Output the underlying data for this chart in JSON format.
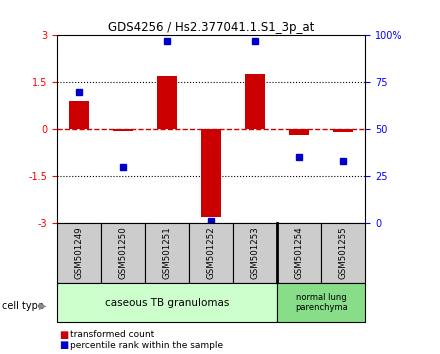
{
  "title": "GDS4256 / Hs2.377041.1.S1_3p_at",
  "samples": [
    "GSM501249",
    "GSM501250",
    "GSM501251",
    "GSM501252",
    "GSM501253",
    "GSM501254",
    "GSM501255"
  ],
  "red_bars": [
    0.9,
    -0.05,
    1.7,
    -2.8,
    1.75,
    -0.2,
    -0.1
  ],
  "blue_dots": [
    70,
    30,
    97,
    1,
    97,
    35,
    33
  ],
  "ylim_left": [
    -3,
    3
  ],
  "ylim_right": [
    0,
    100
  ],
  "yticks_left": [
    -3,
    -1.5,
    0,
    1.5,
    3
  ],
  "yticks_right": [
    0,
    25,
    50,
    75,
    100
  ],
  "ytick_labels_right": [
    "0",
    "25",
    "50",
    "75",
    "100%"
  ],
  "ytick_labels_left": [
    "-3",
    "-1.5",
    "0",
    "1.5",
    "3"
  ],
  "group1_count": 5,
  "group2_count": 2,
  "group1_label": "caseous TB granulomas",
  "group2_label": "normal lung\nparenchyma",
  "cell_type_label": "cell type",
  "legend_red": "transformed count",
  "legend_blue": "percentile rank within the sample",
  "bar_color": "#cc0000",
  "dot_color": "#0000cc",
  "hline_color": "#cc0000",
  "group1_bg": "#ccffcc",
  "group2_bg": "#88dd88",
  "sample_box_bg": "#cccccc"
}
